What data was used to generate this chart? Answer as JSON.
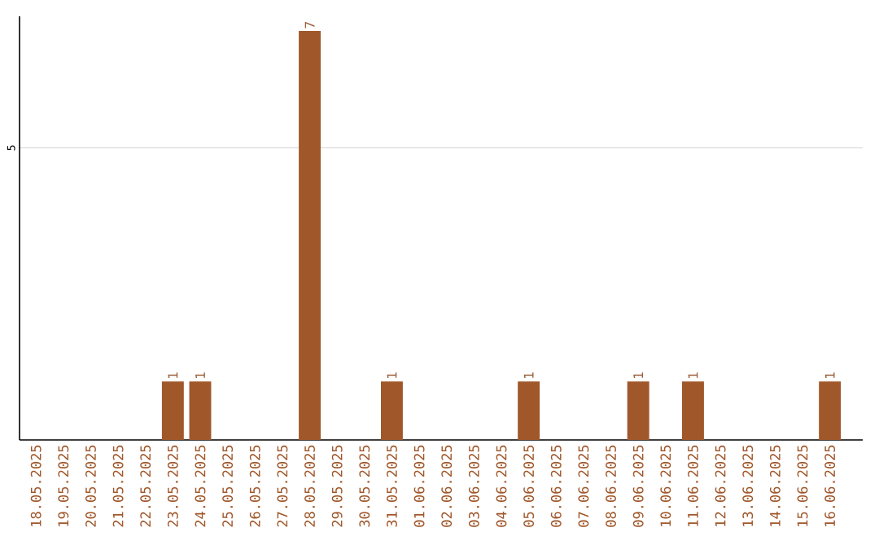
{
  "chart_data": {
    "type": "bar",
    "categories": [
      "18.05.2025",
      "19.05.2025",
      "20.05.2025",
      "21.05.2025",
      "22.05.2025",
      "23.05.2025",
      "24.05.2025",
      "25.05.2025",
      "26.05.2025",
      "27.05.2025",
      "28.05.2025",
      "29.05.2025",
      "30.05.2025",
      "31.05.2025",
      "01.06.2025",
      "02.06.2025",
      "03.06.2025",
      "04.06.2025",
      "05.06.2025",
      "06.06.2025",
      "07.06.2025",
      "08.06.2025",
      "09.06.2025",
      "10.06.2025",
      "11.06.2025",
      "12.06.2025",
      "13.06.2025",
      "14.06.2025",
      "15.06.2025",
      "16.06.2025"
    ],
    "values": [
      0,
      0,
      0,
      0,
      0,
      1,
      1,
      0,
      0,
      0,
      7,
      0,
      0,
      1,
      0,
      0,
      0,
      0,
      1,
      0,
      0,
      0,
      1,
      0,
      1,
      0,
      0,
      0,
      0,
      1
    ],
    "color": "#a0572a",
    "ylim": [
      0,
      7.25
    ],
    "yticks": [
      5
    ],
    "grid": "y",
    "value_labels": [
      null,
      null,
      null,
      null,
      null,
      "1",
      "1",
      null,
      null,
      null,
      "7",
      null,
      null,
      "1",
      null,
      null,
      null,
      null,
      "1",
      null,
      null,
      null,
      "1",
      null,
      "1",
      null,
      null,
      null,
      null,
      "1"
    ]
  }
}
